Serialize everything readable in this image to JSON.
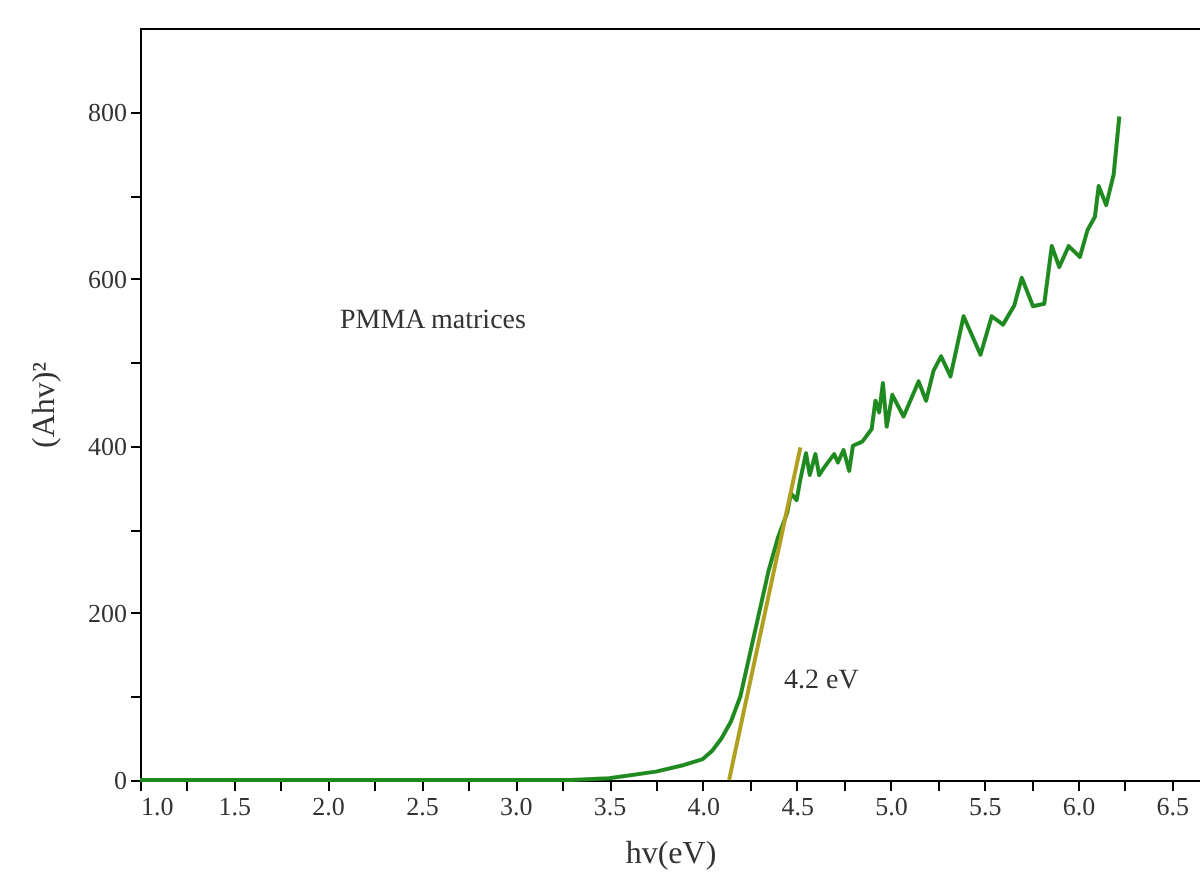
{
  "chart_data": {
    "type": "line",
    "xlabel": "hv(eV)",
    "ylabel": "(Ahv)²",
    "annotations": [
      "PMMA matrices",
      "4.2 eV"
    ],
    "xlim": [
      1.0,
      6.65
    ],
    "ylim": [
      0,
      900
    ],
    "xticks": [
      {
        "value": 1,
        "label": "1.0"
      },
      {
        "value": 1.25,
        "label": null
      },
      1.5,
      {
        "value": 1.75,
        "label": null
      },
      {
        "value": 2,
        "label": "2.0"
      },
      {
        "value": 2.25,
        "label": null
      },
      2.5,
      {
        "value": 2.75,
        "label": null
      },
      {
        "value": 3,
        "label": "3.0"
      },
      {
        "value": 3.25,
        "label": null
      },
      3.5,
      {
        "value": 3.75,
        "label": null
      },
      {
        "value": 4,
        "label": "4.0"
      },
      {
        "value": 4.25,
        "label": null
      },
      4.5,
      {
        "value": 4.75,
        "label": null
      },
      {
        "value": 5,
        "label": "5.0"
      },
      {
        "value": 5.25,
        "label": null
      },
      5.5,
      {
        "value": 5.75,
        "label": null
      },
      {
        "value": 6,
        "label": "6.0"
      },
      {
        "value": 6.25,
        "label": null
      },
      6.5
    ],
    "yticks": [
      0,
      {
        "value": 100,
        "label": null
      },
      200,
      {
        "value": 300,
        "label": null
      },
      400,
      {
        "value": 500,
        "label": null
      },
      600,
      {
        "value": 700,
        "label": null
      },
      800
    ],
    "grid": false,
    "marker": "none",
    "line_style": "solid",
    "series": [
      {
        "color": "#1f8a1f",
        "x": [
          1.0,
          2.0,
          3.0,
          3.3,
          3.5,
          3.75,
          3.9,
          4.0,
          4.05,
          4.1,
          4.15,
          4.2,
          4.25,
          4.3,
          4.35,
          4.4,
          4.45,
          4.47,
          4.5,
          4.52,
          4.55,
          4.57,
          4.6,
          4.62,
          4.65,
          4.7,
          4.72,
          4.75,
          4.78,
          4.8,
          4.85,
          4.9,
          4.92,
          4.94,
          4.96,
          4.98,
          5.01,
          5.07,
          5.15,
          5.19,
          5.23,
          5.27,
          5.32,
          5.39,
          5.48,
          5.54,
          5.6,
          5.66,
          5.7,
          5.76,
          5.82,
          5.86,
          5.9,
          5.95,
          6.01,
          6.05,
          6.09,
          6.11,
          6.15,
          6.19,
          6.22
        ],
        "values": [
          0,
          0,
          0,
          0,
          2,
          10,
          18,
          25,
          35,
          50,
          70,
          100,
          150,
          200,
          250,
          290,
          320,
          343,
          335,
          360,
          391,
          365,
          390,
          365,
          375,
          390,
          380,
          395,
          370,
          400,
          405,
          420,
          454,
          440,
          475,
          423,
          461,
          435,
          477,
          454,
          490,
          507,
          483,
          555,
          509,
          555,
          545,
          568,
          601,
          567,
          570,
          639,
          614,
          639,
          626,
          658,
          674,
          711,
          688,
          725,
          794
        ]
      },
      {
        "color": "#b0a020",
        "x": [
          4.14,
          4.52
        ],
        "values": [
          0,
          398
        ]
      }
    ]
  }
}
